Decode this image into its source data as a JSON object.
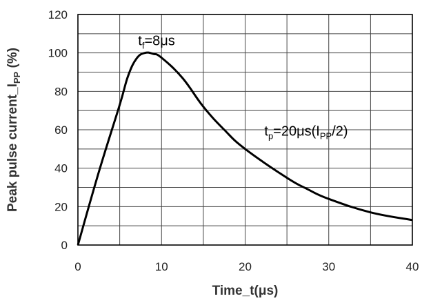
{
  "chart_data": {
    "type": "line",
    "title": "",
    "xlabel": "Time_t(μs)",
    "ylabel": {
      "main": "Peak pulse current_I",
      "sub": "PP",
      "suffix": " (%)"
    },
    "xlim": [
      0,
      40
    ],
    "ylim": [
      0,
      120
    ],
    "x_major_ticks": [
      0,
      10,
      20,
      30,
      40
    ],
    "y_major_ticks": [
      0,
      20,
      40,
      60,
      80,
      100,
      120
    ],
    "x_grid_step": 5,
    "y_grid_step": 10,
    "grid": true,
    "series": [
      {
        "x": [
          0,
          2.5,
          5,
          6,
          7,
          8,
          9,
          10,
          12.5,
          15,
          17.5,
          20,
          25,
          27.5,
          30,
          35,
          40
        ],
        "y": [
          0,
          38,
          73,
          88,
          97,
          100,
          99.5,
          97.5,
          87,
          72,
          60,
          50,
          35,
          29,
          24,
          17,
          13
        ],
        "color": "#000000"
      }
    ],
    "annotations": [
      {
        "text": "t",
        "sub": "f",
        "rest": "=8μs",
        "x": 7.2,
        "y": 104
      },
      {
        "text": "t",
        "sub": "p",
        "rest": "=20μs(I",
        "sub2": "PP",
        "rest2": "/2)",
        "x": 22.3,
        "y": 57
      }
    ]
  }
}
